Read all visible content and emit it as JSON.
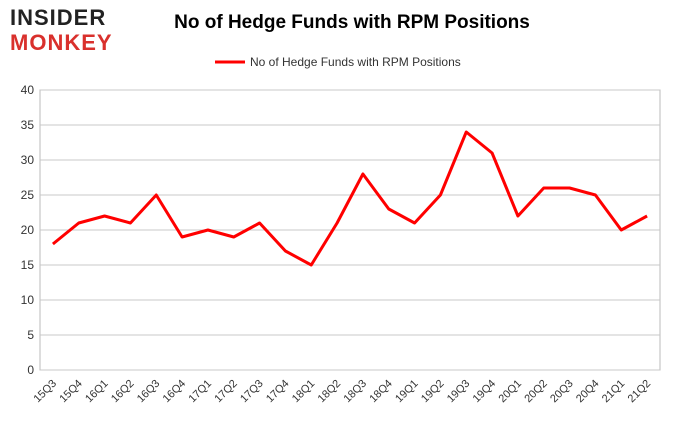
{
  "chart_data": {
    "type": "line",
    "logo": [
      "INSIDER",
      "MONKEY"
    ],
    "title": "No of Hedge Funds with RPM Positions",
    "categories": [
      "15Q3",
      "15Q4",
      "16Q1",
      "16Q2",
      "16Q3",
      "16Q4",
      "17Q1",
      "17Q2",
      "17Q3",
      "17Q4",
      "18Q1",
      "18Q2",
      "18Q3",
      "18Q4",
      "19Q1",
      "19Q2",
      "19Q3",
      "19Q4",
      "20Q1",
      "20Q2",
      "20Q3",
      "20Q4",
      "21Q1",
      "21Q2"
    ],
    "series": [
      {
        "name": "No of Hedge Funds with RPM Positions",
        "color": "#ff0000",
        "values": [
          18,
          21,
          22,
          21,
          25,
          19,
          20,
          19,
          21,
          17,
          15,
          21,
          28,
          23,
          21,
          25,
          34,
          31,
          22,
          26,
          26,
          25,
          20,
          22
        ]
      }
    ],
    "ylim": [
      0,
      40
    ],
    "yticks": [
      0,
      5,
      10,
      15,
      20,
      25,
      30,
      35,
      40
    ],
    "grid": true,
    "legend": "top"
  }
}
